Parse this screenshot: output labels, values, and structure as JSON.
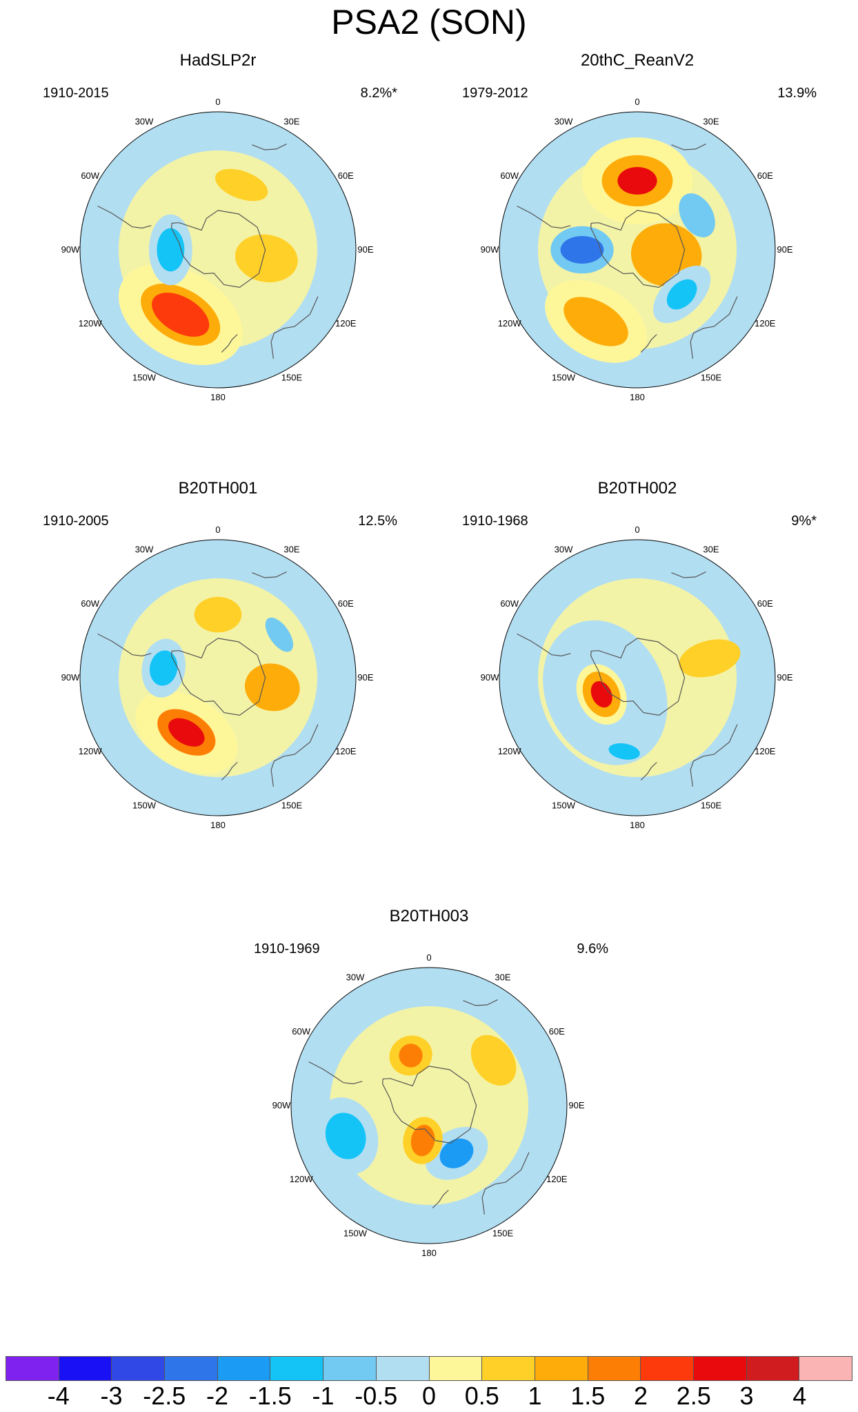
{
  "title": "PSA2 (SON)",
  "longitude_labels": [
    "0",
    "30E",
    "60E",
    "90E",
    "120E",
    "150E",
    "180",
    "150W",
    "120W",
    "90W",
    "60W",
    "30W"
  ],
  "panels": [
    {
      "name": "HadSLP2r",
      "period": "1910-2015",
      "variance": "8.2%*",
      "anomalies": [
        {
          "lon": -150,
          "lat": -52,
          "level": 2.5,
          "rx": 16,
          "ry": 9
        },
        {
          "lon": -150,
          "lat": -52,
          "level": 1.5,
          "rx": 22,
          "ry": 13
        },
        {
          "lon": -150,
          "lat": -52,
          "level": 0.5,
          "rx": 34,
          "ry": 22
        },
        {
          "lon": 100,
          "lat": -65,
          "level": 1.0,
          "rx": 12,
          "ry": 16
        },
        {
          "lon": 20,
          "lat": -55,
          "level": 1.0,
          "rx": 14,
          "ry": 7
        },
        {
          "lon": -90,
          "lat": -66,
          "level": -1.5,
          "rx": 11,
          "ry": 7
        },
        {
          "lon": -90,
          "lat": -66,
          "level": -0.5,
          "rx": 18,
          "ry": 11
        }
      ]
    },
    {
      "name": "20thC_ReanV2",
      "period": "1979-2012",
      "variance": "13.9%",
      "anomalies": [
        {
          "lon": 0,
          "lat": -55,
          "level": 3.0,
          "rx": 10,
          "ry": 7
        },
        {
          "lon": 0,
          "lat": -55,
          "level": 1.5,
          "rx": 18,
          "ry": 13
        },
        {
          "lon": 0,
          "lat": -55,
          "level": 0.5,
          "rx": 28,
          "ry": 22
        },
        {
          "lon": 100,
          "lat": -75,
          "level": 1.5,
          "rx": 16,
          "ry": 18
        },
        {
          "lon": 60,
          "lat": -55,
          "level": -1.0,
          "rx": 12,
          "ry": 8
        },
        {
          "lon": -90,
          "lat": -62,
          "level": -2.5,
          "rx": 7,
          "ry": 11
        },
        {
          "lon": -90,
          "lat": -62,
          "level": -1.0,
          "rx": 12,
          "ry": 16
        },
        {
          "lon": -150,
          "lat": -48,
          "level": 1.5,
          "rx": 18,
          "ry": 10
        },
        {
          "lon": -150,
          "lat": -48,
          "level": 0.5,
          "rx": 28,
          "ry": 18
        },
        {
          "lon": 135,
          "lat": -58,
          "level": -1.5,
          "rx": 9,
          "ry": 6
        },
        {
          "lon": 135,
          "lat": -58,
          "level": -0.5,
          "rx": 18,
          "ry": 10
        }
      ]
    },
    {
      "name": "B20TH001",
      "period": "1910-2005",
      "variance": "12.5%",
      "anomalies": [
        {
          "lon": -150,
          "lat": -58,
          "level": 3.0,
          "rx": 10,
          "ry": 6
        },
        {
          "lon": -150,
          "lat": -58,
          "level": 2.0,
          "rx": 16,
          "ry": 10
        },
        {
          "lon": -150,
          "lat": -58,
          "level": 0.5,
          "rx": 28,
          "ry": 18
        },
        {
          "lon": -80,
          "lat": -62,
          "level": -1.5,
          "rx": 9,
          "ry": 7
        },
        {
          "lon": -80,
          "lat": -62,
          "level": -0.5,
          "rx": 15,
          "ry": 11
        },
        {
          "lon": 0,
          "lat": -58,
          "level": 1.0,
          "rx": 12,
          "ry": 9
        },
        {
          "lon": 100,
          "lat": -62,
          "level": 1.5,
          "rx": 12,
          "ry": 14
        },
        {
          "lon": 55,
          "lat": -52,
          "level": -1.0,
          "rx": 10,
          "ry": 5
        }
      ]
    },
    {
      "name": "B20TH002",
      "period": "1910-1968",
      "variance": "9%*",
      "anomalies": [
        {
          "lon": -115,
          "lat": -72,
          "level": -0.5,
          "rx": 38,
          "ry": 30
        },
        {
          "lon": -115,
          "lat": -70,
          "level": 3.0,
          "rx": 7,
          "ry": 5
        },
        {
          "lon": -115,
          "lat": -70,
          "level": 1.5,
          "rx": 12,
          "ry": 9
        },
        {
          "lon": -115,
          "lat": -70,
          "level": 0.5,
          "rx": 16,
          "ry": 12
        },
        {
          "lon": -170,
          "lat": -52,
          "level": -1.5,
          "rx": 8,
          "ry": 4
        },
        {
          "lon": 75,
          "lat": -52,
          "level": 1.0,
          "rx": 9,
          "ry": 16
        }
      ]
    },
    {
      "name": "B20TH003",
      "period": "1910-1969",
      "variance": "9.6%",
      "anomalies": [
        {
          "lon": -110,
          "lat": -45,
          "level": -1.5,
          "rx": 12,
          "ry": 10
        },
        {
          "lon": -110,
          "lat": -45,
          "level": -0.5,
          "rx": 20,
          "ry": 16
        },
        {
          "lon": 150,
          "lat": -62,
          "level": -2.0,
          "rx": 9,
          "ry": 7
        },
        {
          "lon": 150,
          "lat": -62,
          "level": -0.5,
          "rx": 17,
          "ry": 12
        },
        {
          "lon": -170,
          "lat": -72,
          "level": 2.0,
          "rx": 6,
          "ry": 8
        },
        {
          "lon": -170,
          "lat": -72,
          "level": 1.0,
          "rx": 10,
          "ry": 12
        },
        {
          "lon": -20,
          "lat": -63,
          "level": 2.0,
          "rx": 6,
          "ry": 6
        },
        {
          "lon": -20,
          "lat": -63,
          "level": 1.0,
          "rx": 11,
          "ry": 10
        },
        {
          "lon": 55,
          "lat": -50,
          "level": 1.0,
          "rx": 14,
          "ry": 10
        }
      ]
    }
  ],
  "colorbar": {
    "labels": [
      "-4",
      "-3",
      "-2.5",
      "-2",
      "-1.5",
      "-1",
      "-0.5",
      "0",
      "0.5",
      "1",
      "1.5",
      "2",
      "2.5",
      "3",
      "4"
    ],
    "colors": [
      "#7f22f0",
      "#1a10f5",
      "#2f48e6",
      "#2f75ea",
      "#1c9bf5",
      "#14c4f6",
      "#72c9f2",
      "#b2def2",
      "#fef79a",
      "#fed028",
      "#fdac0a",
      "#fd7e05",
      "#fd3a0c",
      "#e80a0c",
      "#d01c1f",
      "#fbb4b4"
    ],
    "levels_min": -4,
    "levels_max": 4
  },
  "colors": {
    "coastline": "#555555",
    "background_field": "#b2def2"
  }
}
